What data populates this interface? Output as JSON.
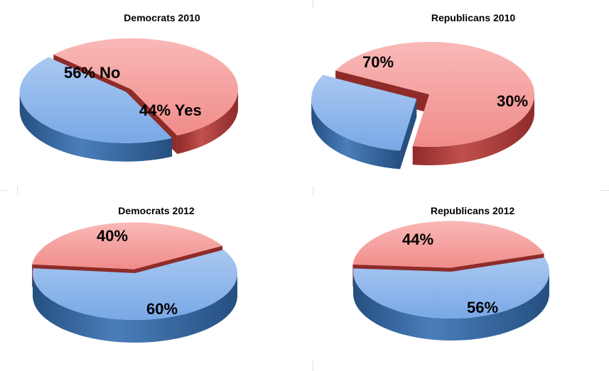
{
  "colors": {
    "no_top": "#f08c8a",
    "no_top_light": "#f9b9b7",
    "no_side": "#c0504d",
    "no_side_dark": "#8f2b29",
    "yes_top": "#79a8e6",
    "yes_top_light": "#a9c8f1",
    "yes_side": "#4a7ebb",
    "yes_side_dark": "#254f80"
  },
  "chart_data": [
    {
      "type": "pie",
      "title": "Democrats 2010",
      "slices": [
        {
          "label": "56% No",
          "value": 56,
          "color": "red"
        },
        {
          "label": "44% Yes",
          "value": 44,
          "color": "blue"
        }
      ]
    },
    {
      "type": "pie",
      "title": "Republicans 2010",
      "slices": [
        {
          "label": "70%",
          "value": 70,
          "color": "red"
        },
        {
          "label": "30%",
          "value": 30,
          "color": "blue"
        }
      ]
    },
    {
      "type": "pie",
      "title": "Democrats 2012",
      "slices": [
        {
          "label": "40%",
          "value": 40,
          "color": "red"
        },
        {
          "label": "60%",
          "value": 60,
          "color": "blue"
        }
      ]
    },
    {
      "type": "pie",
      "title": "Republicans 2012",
      "slices": [
        {
          "label": "44%",
          "value": 44,
          "color": "red"
        },
        {
          "label": "56%",
          "value": 56,
          "color": "blue"
        }
      ]
    }
  ]
}
